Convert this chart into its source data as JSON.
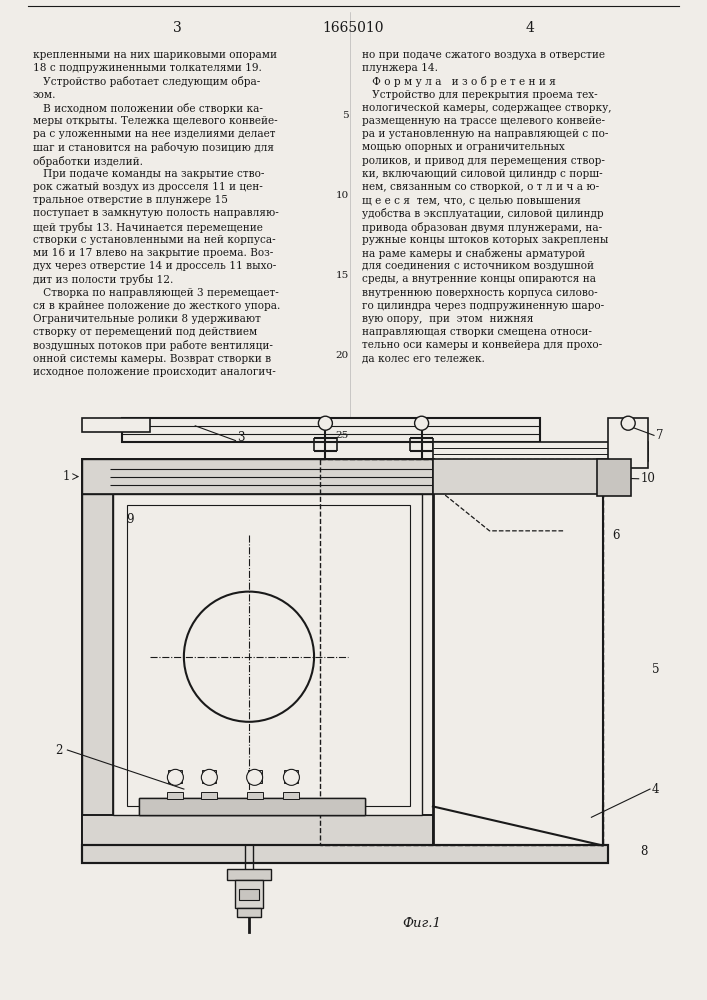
{
  "page_number_left": "3",
  "patent_number": "1665010",
  "page_number_right": "4",
  "left_column_text": [
    "крепленными на них шариковыми опорами",
    "18 с подпружиненными толкателями 19.",
    "   Устройство работает следующим обра-",
    "зом.",
    "   В исходном положении обе створки ка-",
    "меры открыты. Тележка щелевого конвейе-",
    "ра с уложенными на нее изделиями делает",
    "шаг и становится на рабочую позицию для",
    "обработки изделий.",
    "   При подаче команды на закрытие ство-",
    "рок сжатый воздух из дросселя 11 и цен-",
    "тральное отверстие в плунжере 15",
    "поступает в замкнутую полость направляю-",
    "щей трубы 13. Начинается перемещение",
    "створки с установленными на ней корпуса-",
    "ми 16 и 17 влево на закрытие проема. Воз-",
    "дух через отверстие 14 и дроссель 11 выхо-",
    "дит из полости трубы 12.",
    "   Створка по направляющей 3 перемещает-",
    "ся в крайнее положение до жесткого упора.",
    "Ограничительные ролики 8 удерживают",
    "створку от перемещений под действием",
    "воздушных потоков при работе вентиляци-",
    "онной системы камеры. Возврат створки в",
    "исходное положение происходит аналогич-"
  ],
  "right_column_text": [
    "но при подаче сжатого воздуха в отверстие",
    "плунжера 14.",
    "   Ф о р м у л а   и з о б р е т е н и я",
    "   Устройство для перекрытия проема тех-",
    "нологической камеры, содержащее створку,",
    "размещенную на трассе щелевого конвейе-",
    "ра и установленную на направляющей с по-",
    "мощью опорных и ограничительных",
    "роликов, и привод для перемещения створ-",
    "ки, включающий силовой цилиндр с порш-",
    "нем, связанным со створкой, о т л и ч а ю-",
    "щ е е с я  тем, что, с целью повышения",
    "удобства в эксплуатации, силовой цилиндр",
    "привода образован двумя плунжерами, на-",
    "ружные концы штоков которых закреплены",
    "на раме камеры и снабжены арматурой",
    "для соединения с источником воздушной",
    "среды, а внутренние концы опираются на",
    "внутреннюю поверхность корпуса силово-",
    "го цилиндра через подпружиненную шаро-",
    "вую опору,  при  этом  нижняя",
    "направляющая створки смещена относи-",
    "тельно оси камеры и конвейера для прохо-",
    "да колес его тележек."
  ],
  "line_numbers": [
    "5",
    "10",
    "15",
    "20",
    "25"
  ],
  "line_number_positions_y": [
    116,
    196,
    276,
    356,
    436
  ],
  "fig_caption": "Фиг.1",
  "bg_color": "#f0ede8",
  "text_color": "#1a1a1a",
  "line_color": "#1a1a1a"
}
